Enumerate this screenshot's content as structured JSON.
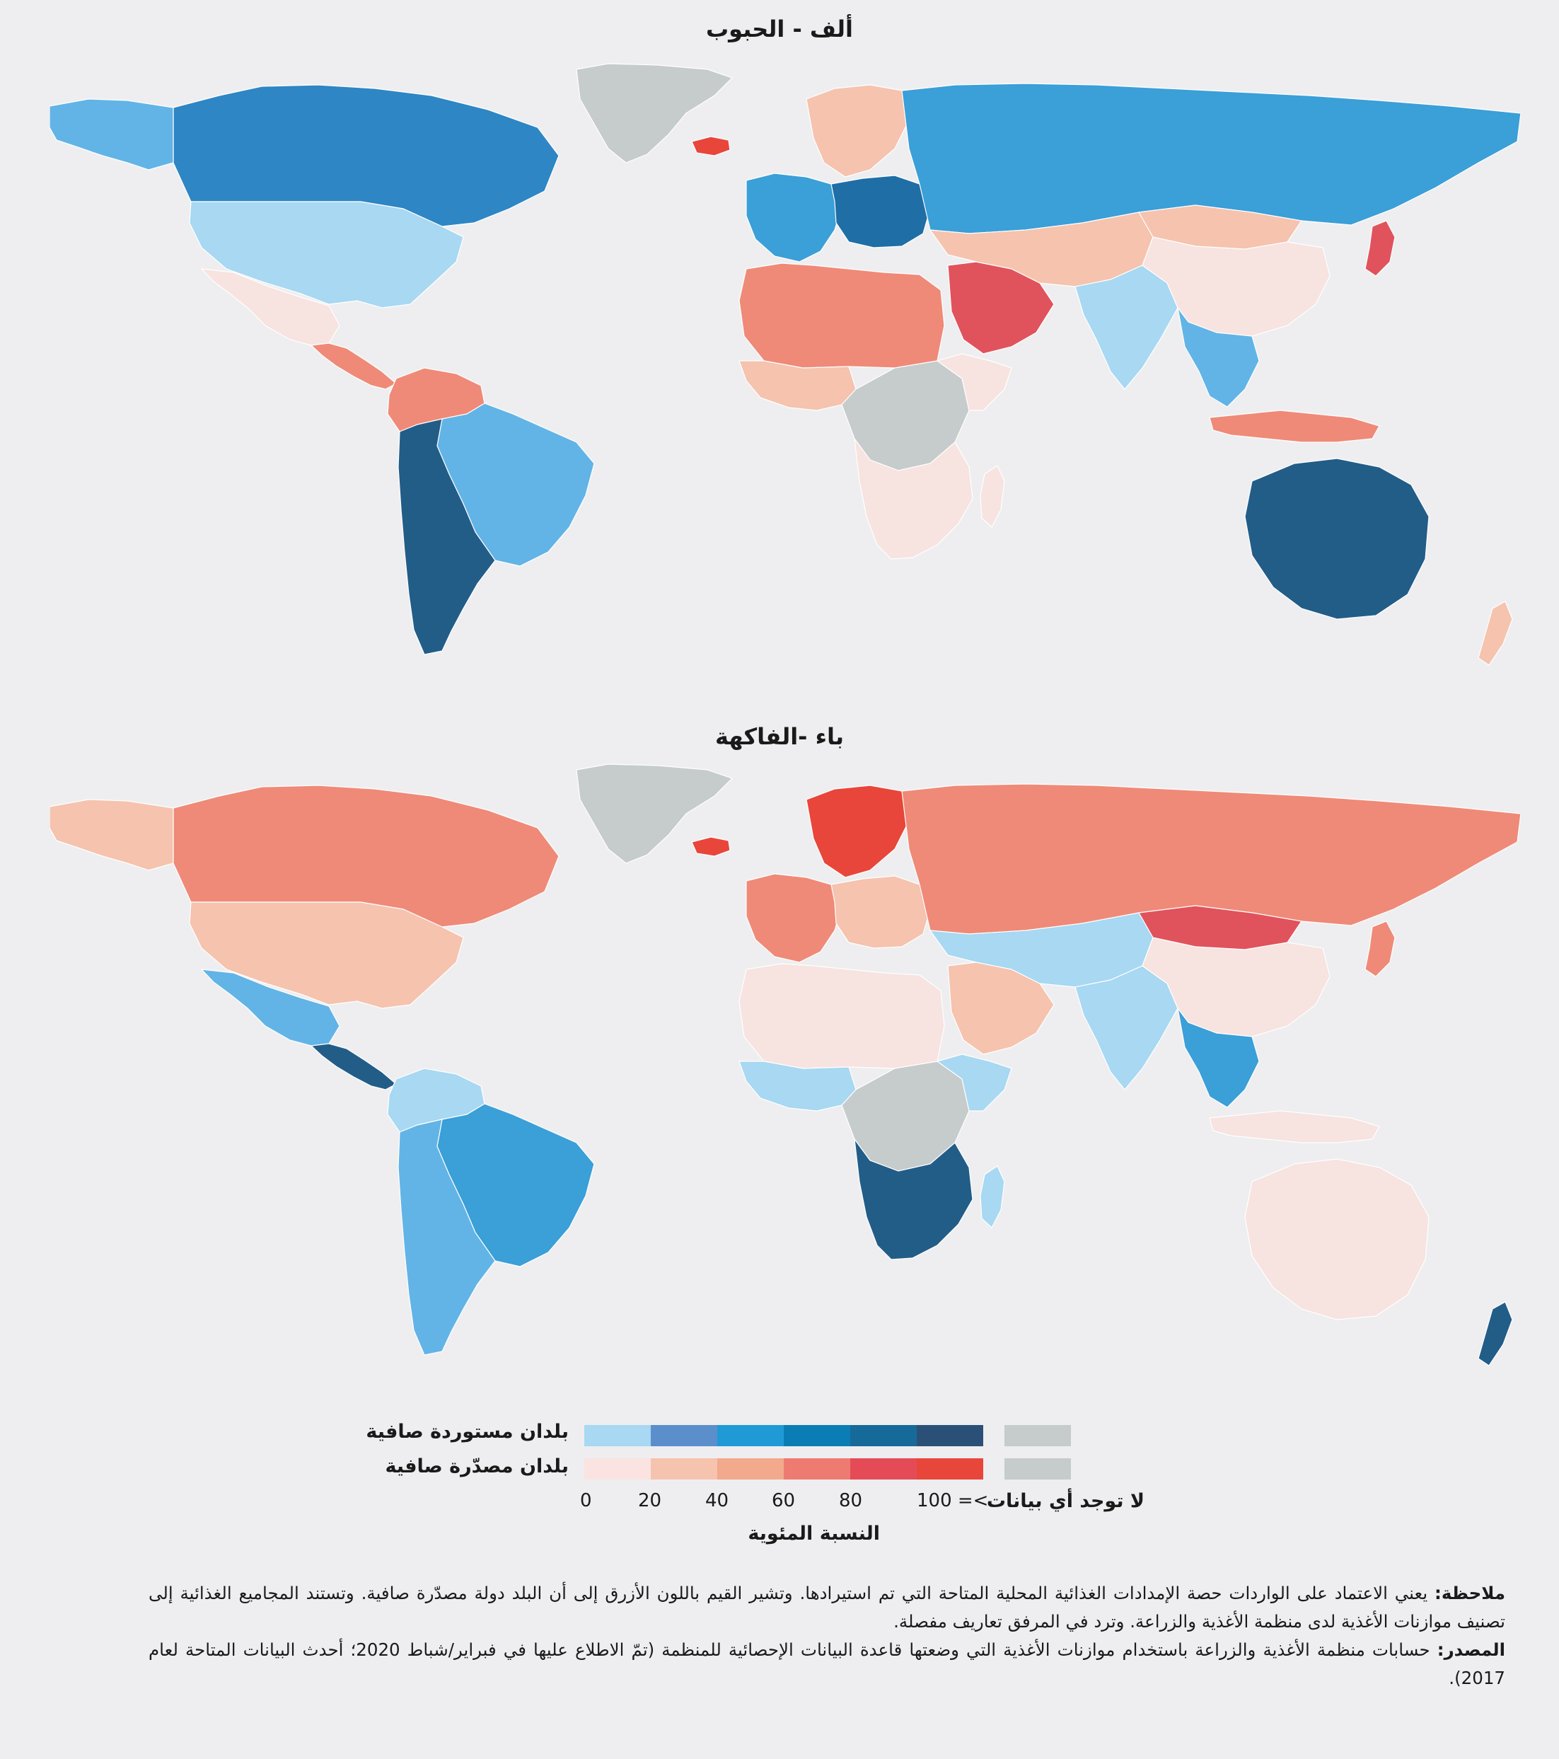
{
  "maps": [
    {
      "title": "ألف - الحبوب",
      "regions": [
        {
          "id": "greenland",
          "category": "no-data"
        },
        {
          "id": "canada",
          "category": "import-4"
        },
        {
          "id": "alaska",
          "category": "import-2"
        },
        {
          "id": "usa",
          "category": "import-1"
        },
        {
          "id": "mexico",
          "category": "export-1"
        },
        {
          "id": "central-america",
          "category": "export-3"
        },
        {
          "id": "south-america-north",
          "category": "export-3"
        },
        {
          "id": "brazil",
          "category": "import-2"
        },
        {
          "id": "argentina",
          "category": "import-6"
        },
        {
          "id": "iceland",
          "category": "export-5"
        },
        {
          "id": "western-europe",
          "category": "import-3"
        },
        {
          "id": "scandinavia",
          "category": "export-2"
        },
        {
          "id": "eastern-europe",
          "category": "import-5"
        },
        {
          "id": "russia",
          "category": "import-3"
        },
        {
          "id": "north-africa",
          "category": "export-3"
        },
        {
          "id": "west-africa",
          "category": "export-2"
        },
        {
          "id": "central-africa",
          "category": "no-data"
        },
        {
          "id": "east-africa",
          "category": "export-1"
        },
        {
          "id": "southern-africa",
          "category": "export-1"
        },
        {
          "id": "madagascar",
          "category": "export-1"
        },
        {
          "id": "arabia",
          "category": "export-4"
        },
        {
          "id": "central-asia",
          "category": "export-2"
        },
        {
          "id": "india",
          "category": "import-1"
        },
        {
          "id": "china",
          "category": "export-1"
        },
        {
          "id": "mongolia",
          "category": "export-2"
        },
        {
          "id": "japan",
          "category": "export-4"
        },
        {
          "id": "southeast-asia",
          "category": "import-2"
        },
        {
          "id": "indonesia",
          "category": "export-3"
        },
        {
          "id": "australia",
          "category": "import-6"
        },
        {
          "id": "new-zealand",
          "category": "export-2"
        }
      ]
    },
    {
      "title": "باء -الفاكهة",
      "regions": [
        {
          "id": "greenland",
          "category": "no-data"
        },
        {
          "id": "canada",
          "category": "export-3"
        },
        {
          "id": "alaska",
          "category": "export-2"
        },
        {
          "id": "usa",
          "category": "export-2"
        },
        {
          "id": "mexico",
          "category": "import-2"
        },
        {
          "id": "central-america",
          "category": "import-6"
        },
        {
          "id": "south-america-north",
          "category": "import-1"
        },
        {
          "id": "brazil",
          "category": "import-3"
        },
        {
          "id": "argentina",
          "category": "import-2"
        },
        {
          "id": "iceland",
          "category": "export-5"
        },
        {
          "id": "western-europe",
          "category": "export-3"
        },
        {
          "id": "scandinavia",
          "category": "export-5"
        },
        {
          "id": "eastern-europe",
          "category": "export-2"
        },
        {
          "id": "russia",
          "category": "export-3"
        },
        {
          "id": "north-africa",
          "category": "export-1"
        },
        {
          "id": "west-africa",
          "category": "import-1"
        },
        {
          "id": "central-africa",
          "category": "no-data"
        },
        {
          "id": "east-africa",
          "category": "import-1"
        },
        {
          "id": "southern-africa",
          "category": "import-6"
        },
        {
          "id": "madagascar",
          "category": "import-1"
        },
        {
          "id": "arabia",
          "category": "export-2"
        },
        {
          "id": "central-asia",
          "category": "import-1"
        },
        {
          "id": "india",
          "category": "import-1"
        },
        {
          "id": "china",
          "category": "export-1"
        },
        {
          "id": "mongolia",
          "category": "export-4"
        },
        {
          "id": "japan",
          "category": "export-3"
        },
        {
          "id": "southeast-asia",
          "category": "import-3"
        },
        {
          "id": "indonesia",
          "category": "export-1"
        },
        {
          "id": "australia",
          "category": "export-1"
        },
        {
          "id": "new-zealand",
          "category": "import-6"
        }
      ]
    }
  ],
  "legend": {
    "import_label": "بلدان مستوردة صافية",
    "export_label": "بلدان مصدّرة صافية",
    "no_data_label": "لا توجد أي بيانات",
    "ticks": [
      "0",
      "20",
      "40",
      "60",
      "80",
      "100 =<"
    ],
    "axis_title": "النسبة المئوية",
    "import_colors": [
      "#a8d8f2",
      "#5b8fcb",
      "#1f9ad6",
      "#0b7db5",
      "#166a99",
      "#2b5078"
    ],
    "export_colors": [
      "#fbe3e1",
      "#f6c3ae",
      "#f2a98c",
      "#ee7b72",
      "#e54b57",
      "#e8463a"
    ],
    "no_data_color": "#c6cbcc"
  },
  "palette": {
    "no-data": "#c6cbcc",
    "import-1": "#a8d8f2",
    "import-2": "#62b4e6",
    "import-3": "#3b9fd8",
    "import-4": "#2e86c4",
    "import-5": "#1f6ea6",
    "import-6": "#225d88",
    "export-1": "#f7e3e0",
    "export-2": "#f5c3ae",
    "export-3": "#ef8a78",
    "export-4": "#e0535c",
    "export-5": "#e8463a"
  },
  "notes": {
    "note_label": "ملاحظة:",
    "note_text": " يعني الاعتماد على الواردات حصة الإمدادات الغذائية المحلية المتاحة التي تم استيرادها. وتشير القيم باللون الأزرق إلى أن البلد دولة مصدّرة صافية. وتستند المجاميع الغذائية إلى تصنيف موازنات الأغذية لدى منظمة الأغذية والزراعة. وترد في المرفق تعاريف مفصلة.",
    "source_label": "المصدر:",
    "source_text": " حسابات منظمة الأغذية والزراعة باستخدام موازنات الأغذية التي وضعتها قاعدة البيانات الإحصائية للمنظمة (تمّ الاطلاع عليها في فبراير/شباط 2020؛ أحدث البيانات المتاحة لعام 2017)."
  }
}
